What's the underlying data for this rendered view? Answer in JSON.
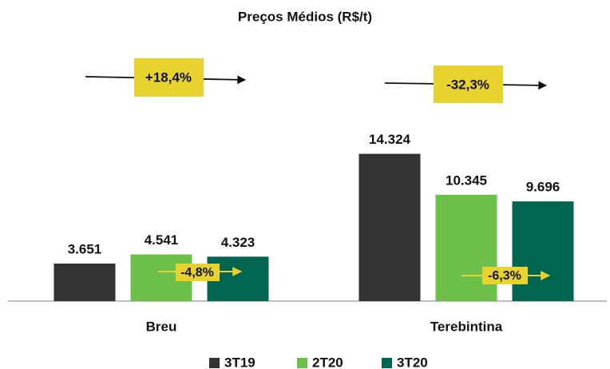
{
  "chart_data": {
    "type": "bar",
    "title": "Preços Médios (R$/t)",
    "categories": [
      "Breu",
      "Terebintina"
    ],
    "series": [
      {
        "name": "3T19",
        "color": "#333333",
        "values": [
          3651,
          14324
        ],
        "value_labels": [
          "3.651",
          "14.324"
        ]
      },
      {
        "name": "2T20",
        "color": "#6cc04a",
        "values": [
          4541,
          10345
        ],
        "value_labels": [
          "4.541",
          "10.345"
        ]
      },
      {
        "name": "3T20",
        "color": "#006652",
        "values": [
          4323,
          9696
        ],
        "value_labels": [
          "4.323",
          "9.696"
        ]
      }
    ],
    "ylim": [
      0,
      16000
    ],
    "annotations": [
      "+18,4%",
      "-32,3%",
      "-4,8%",
      "-6,3%"
    ],
    "legend": "bottom"
  }
}
